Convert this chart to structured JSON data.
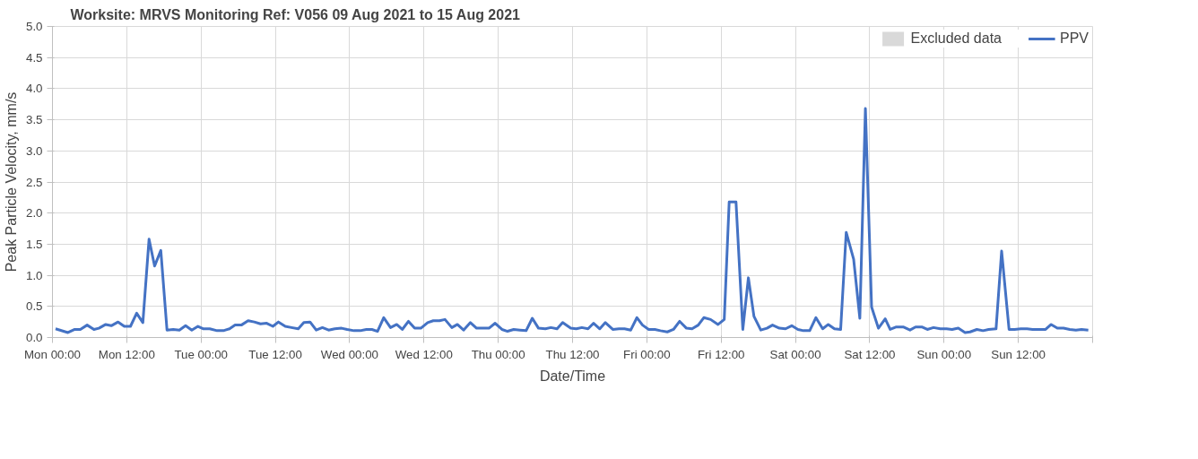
{
  "chart_data": {
    "type": "line",
    "title": "Worksite: MRVS    Monitoring Ref: V056     09 Aug 2021  to 15 Aug 2021",
    "xlabel": "Date/Time",
    "ylabel": "Peak Particle Velocity, mm/s",
    "xlim": [
      "2021-08-09T00:00",
      "2021-08-16T00:00"
    ],
    "ylim": [
      0,
      5
    ],
    "xticks": [
      {
        "value": "2021-08-09T00:00",
        "label": "Mon 00:00"
      },
      {
        "value": "2021-08-09T12:00",
        "label": "Mon 12:00"
      },
      {
        "value": "2021-08-10T00:00",
        "label": "Tue 00:00"
      },
      {
        "value": "2021-08-10T12:00",
        "label": "Tue 12:00"
      },
      {
        "value": "2021-08-11T00:00",
        "label": "Wed 00:00"
      },
      {
        "value": "2021-08-11T12:00",
        "label": "Wed 12:00"
      },
      {
        "value": "2021-08-12T00:00",
        "label": "Thu 00:00"
      },
      {
        "value": "2021-08-12T12:00",
        "label": "Thu 12:00"
      },
      {
        "value": "2021-08-13T00:00",
        "label": "Fri 00:00"
      },
      {
        "value": "2021-08-13T12:00",
        "label": "Fri 12:00"
      },
      {
        "value": "2021-08-14T00:00",
        "label": "Sat 00:00"
      },
      {
        "value": "2021-08-14T12:00",
        "label": "Sat 12:00"
      },
      {
        "value": "2021-08-15T00:00",
        "label": "Sun 00:00"
      },
      {
        "value": "2021-08-15T12:00",
        "label": "Sun 12:00"
      },
      {
        "value": "2021-08-16T00:00",
        "label": null
      }
    ],
    "yticks": [
      {
        "value": 0,
        "label": "0.0"
      },
      {
        "value": 0.5,
        "label": "0.5"
      },
      {
        "value": 1,
        "label": "1.0"
      },
      {
        "value": 1.5,
        "label": "1.5"
      },
      {
        "value": 2,
        "label": "2.0"
      },
      {
        "value": 2.5,
        "label": "2.5"
      },
      {
        "value": 3,
        "label": "3.0"
      },
      {
        "value": 3.5,
        "label": "3.5"
      },
      {
        "value": 4,
        "label": "4.0"
      },
      {
        "value": 4.5,
        "label": "4.5"
      },
      {
        "value": 5,
        "label": "5.0"
      }
    ],
    "grid": true,
    "legend": "top right",
    "marker": "none",
    "line_style": "solid",
    "series": [
      {
        "name": "Excluded data",
        "type": "area",
        "color": "#d9d9d9"
      },
      {
        "name": "PPV",
        "color": "#4472c4",
        "x": [
          "2021-08-09T00:30",
          "2021-08-09T02:30",
          "2021-08-09T03:36",
          "2021-08-09T04:30",
          "2021-08-09T05:36",
          "2021-08-09T06:42",
          "2021-08-09T07:30",
          "2021-08-09T08:36",
          "2021-08-09T09:30",
          "2021-08-09T10:36",
          "2021-08-09T11:36",
          "2021-08-09T12:36",
          "2021-08-09T13:36",
          "2021-08-09T14:36",
          "2021-08-09T15:36",
          "2021-08-09T16:30",
          "2021-08-09T17:30",
          "2021-08-09T18:30",
          "2021-08-09T19:30",
          "2021-08-09T20:30",
          "2021-08-09T21:30",
          "2021-08-09T22:30",
          "2021-08-09T23:30",
          "2021-08-10T00:24",
          "2021-08-10T01:24",
          "2021-08-10T02:36",
          "2021-08-10T03:36",
          "2021-08-10T04:36",
          "2021-08-10T05:30",
          "2021-08-10T06:30",
          "2021-08-10T07:36",
          "2021-08-10T08:36",
          "2021-08-10T09:36",
          "2021-08-10T10:36",
          "2021-08-10T11:36",
          "2021-08-10T12:30",
          "2021-08-10T13:36",
          "2021-08-10T14:36",
          "2021-08-10T15:42",
          "2021-08-10T16:36",
          "2021-08-10T17:36",
          "2021-08-10T18:36",
          "2021-08-10T19:36",
          "2021-08-10T20:36",
          "2021-08-10T21:36",
          "2021-08-10T22:42",
          "2021-08-10T23:36",
          "2021-08-11T00:42",
          "2021-08-11T01:42",
          "2021-08-11T02:42",
          "2021-08-11T03:36",
          "2021-08-11T04:30",
          "2021-08-11T05:30",
          "2021-08-11T06:36",
          "2021-08-11T07:36",
          "2021-08-11T08:30",
          "2021-08-11T09:30",
          "2021-08-11T10:30",
          "2021-08-11T11:30",
          "2021-08-11T12:36",
          "2021-08-11T13:30",
          "2021-08-11T14:30",
          "2021-08-11T15:24",
          "2021-08-11T16:30",
          "2021-08-11T17:24",
          "2021-08-11T18:24",
          "2021-08-11T19:30",
          "2021-08-11T20:30",
          "2021-08-11T21:30",
          "2021-08-11T22:30",
          "2021-08-11T23:30",
          "2021-08-12T00:36",
          "2021-08-12T01:30",
          "2021-08-12T02:30",
          "2021-08-12T03:30",
          "2021-08-12T04:30",
          "2021-08-12T05:30",
          "2021-08-12T06:30",
          "2021-08-12T07:36",
          "2021-08-12T08:30",
          "2021-08-12T09:30",
          "2021-08-12T10:24",
          "2021-08-12T11:42",
          "2021-08-12T12:36",
          "2021-08-12T13:30",
          "2021-08-12T14:30",
          "2021-08-12T15:24",
          "2021-08-12T16:24",
          "2021-08-12T17:18",
          "2021-08-12T18:30",
          "2021-08-12T19:30",
          "2021-08-12T20:24",
          "2021-08-12T21:24",
          "2021-08-12T22:24",
          "2021-08-12T23:18",
          "2021-08-13T00:18",
          "2021-08-13T01:18",
          "2021-08-13T02:12",
          "2021-08-13T03:18",
          "2021-08-13T04:18",
          "2021-08-13T05:18",
          "2021-08-13T06:24",
          "2021-08-13T07:18",
          "2021-08-13T08:18",
          "2021-08-13T09:12",
          "2021-08-13T10:18",
          "2021-08-13T11:30",
          "2021-08-13T12:30",
          "2021-08-13T13:18",
          "2021-08-13T14:24",
          "2021-08-13T15:30",
          "2021-08-13T16:24",
          "2021-08-13T17:18",
          "2021-08-13T18:24",
          "2021-08-13T19:24",
          "2021-08-13T20:18",
          "2021-08-13T21:24",
          "2021-08-13T22:24",
          "2021-08-13T23:24",
          "2021-08-14T00:24",
          "2021-08-14T01:18",
          "2021-08-14T02:18",
          "2021-08-14T03:18",
          "2021-08-14T04:24",
          "2021-08-14T05:18",
          "2021-08-14T06:18",
          "2021-08-14T07:18",
          "2021-08-14T08:12",
          "2021-08-14T09:24",
          "2021-08-14T10:24",
          "2021-08-14T11:18",
          "2021-08-14T12:18",
          "2021-08-14T13:24",
          "2021-08-14T14:30",
          "2021-08-14T15:18",
          "2021-08-14T16:18",
          "2021-08-14T17:24",
          "2021-08-14T18:30",
          "2021-08-14T19:24",
          "2021-08-14T20:24",
          "2021-08-14T21:18",
          "2021-08-14T22:18",
          "2021-08-14T23:24",
          "2021-08-15T00:24",
          "2021-08-15T01:18",
          "2021-08-15T02:18",
          "2021-08-15T03:24",
          "2021-08-15T04:12",
          "2021-08-15T05:18",
          "2021-08-15T06:18",
          "2021-08-15T07:12",
          "2021-08-15T08:24",
          "2021-08-15T09:18",
          "2021-08-15T10:30",
          "2021-08-15T11:24",
          "2021-08-15T12:24",
          "2021-08-15T13:24",
          "2021-08-15T14:18",
          "2021-08-15T15:18",
          "2021-08-15T16:24",
          "2021-08-15T17:18",
          "2021-08-15T18:18",
          "2021-08-15T19:18",
          "2021-08-15T20:18",
          "2021-08-15T21:18",
          "2021-08-15T22:12",
          "2021-08-15T23:18"
        ],
        "values": [
          0.14,
          0.08,
          0.13,
          0.13,
          0.2,
          0.13,
          0.15,
          0.21,
          0.19,
          0.25,
          0.18,
          0.18,
          0.39,
          0.24,
          1.58,
          1.15,
          1.4,
          0.12,
          0.13,
          0.12,
          0.19,
          0.12,
          0.18,
          0.14,
          0.14,
          0.11,
          0.11,
          0.14,
          0.2,
          0.2,
          0.27,
          0.25,
          0.22,
          0.23,
          0.18,
          0.25,
          0.18,
          0.16,
          0.14,
          0.24,
          0.25,
          0.12,
          0.16,
          0.12,
          0.14,
          0.15,
          0.13,
          0.11,
          0.11,
          0.13,
          0.13,
          0.1,
          0.32,
          0.16,
          0.21,
          0.13,
          0.26,
          0.15,
          0.15,
          0.24,
          0.27,
          0.27,
          0.29,
          0.16,
          0.21,
          0.12,
          0.24,
          0.15,
          0.15,
          0.15,
          0.23,
          0.13,
          0.1,
          0.13,
          0.12,
          0.11,
          0.31,
          0.15,
          0.14,
          0.16,
          0.14,
          0.24,
          0.15,
          0.14,
          0.16,
          0.14,
          0.23,
          0.14,
          0.24,
          0.13,
          0.14,
          0.14,
          0.12,
          0.32,
          0.2,
          0.13,
          0.13,
          0.11,
          0.09,
          0.13,
          0.26,
          0.15,
          0.14,
          0.2,
          0.32,
          0.29,
          0.21,
          0.29,
          2.18,
          2.18,
          0.13,
          0.96,
          0.34,
          0.12,
          0.15,
          0.2,
          0.15,
          0.14,
          0.19,
          0.13,
          0.11,
          0.11,
          0.32,
          0.14,
          0.21,
          0.14,
          0.13,
          1.69,
          1.26,
          0.31,
          3.68,
          0.49,
          0.15,
          0.3,
          0.13,
          0.17,
          0.17,
          0.12,
          0.17,
          0.17,
          0.13,
          0.16,
          0.14,
          0.14,
          0.13,
          0.15,
          0.08,
          0.09,
          0.13,
          0.11,
          0.13,
          0.14,
          1.39,
          0.13,
          0.13,
          0.14,
          0.14,
          0.13,
          0.13,
          0.13,
          0.21,
          0.15,
          0.15,
          0.13,
          0.12,
          0.13,
          0.12
        ]
      }
    ]
  }
}
